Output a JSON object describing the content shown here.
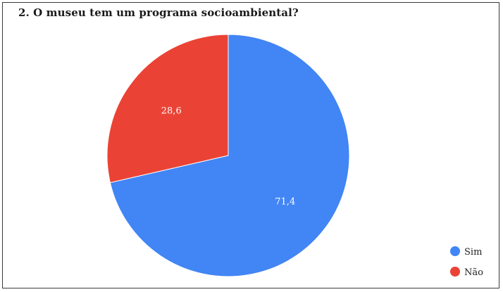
{
  "chart_data": {
    "type": "pie",
    "title": "2. O museu tem um programa socioambiental?",
    "categories": [
      "Sim",
      "Não"
    ],
    "values": [
      71.4,
      28.6
    ],
    "data_labels": [
      "71,4",
      "28,6"
    ],
    "colors": [
      "#4285f4",
      "#ea4335"
    ],
    "legend_placement": "bottom-right"
  }
}
